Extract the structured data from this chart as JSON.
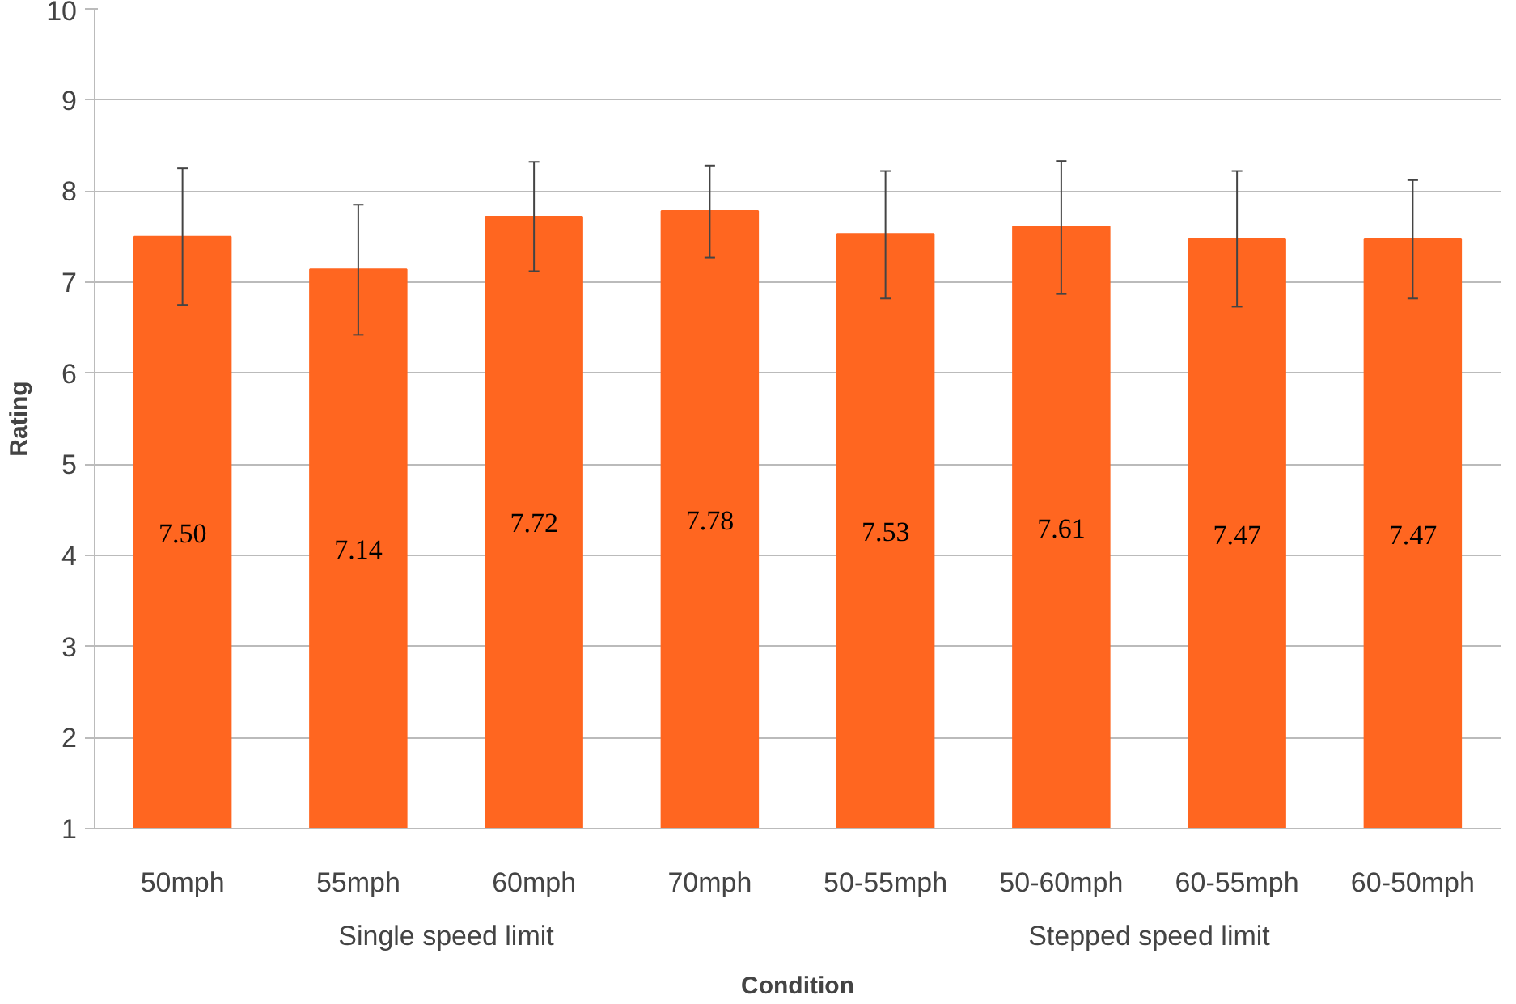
{
  "chart_data": {
    "type": "bar",
    "xlabel": "Condition",
    "ylabel": "Rating",
    "categories": [
      "50mph",
      "55mph",
      "60mph",
      "70mph",
      "50-55mph",
      "50-60mph",
      "60-55mph",
      "60-50mph"
    ],
    "values": [
      7.5,
      7.14,
      7.72,
      7.78,
      7.53,
      7.61,
      7.47,
      7.47
    ],
    "value_labels": [
      "7.50",
      "7.14",
      "7.72",
      "7.78",
      "7.53",
      "7.61",
      "7.47",
      "7.47"
    ],
    "errors": [
      [
        6.75,
        8.25
      ],
      [
        6.42,
        7.85
      ],
      [
        7.12,
        8.32
      ],
      [
        7.27,
        8.28
      ],
      [
        6.82,
        8.22
      ],
      [
        6.87,
        8.33
      ],
      [
        6.73,
        8.22
      ],
      [
        6.82,
        8.12
      ]
    ],
    "color": "#ff6620",
    "ylim": [
      1,
      10
    ],
    "yticks": [
      1,
      2,
      3,
      4,
      5,
      6,
      7,
      8,
      9,
      10
    ],
    "grid": "y",
    "annotations": [
      "Single speed limit",
      "Stepped speed limit"
    ]
  }
}
